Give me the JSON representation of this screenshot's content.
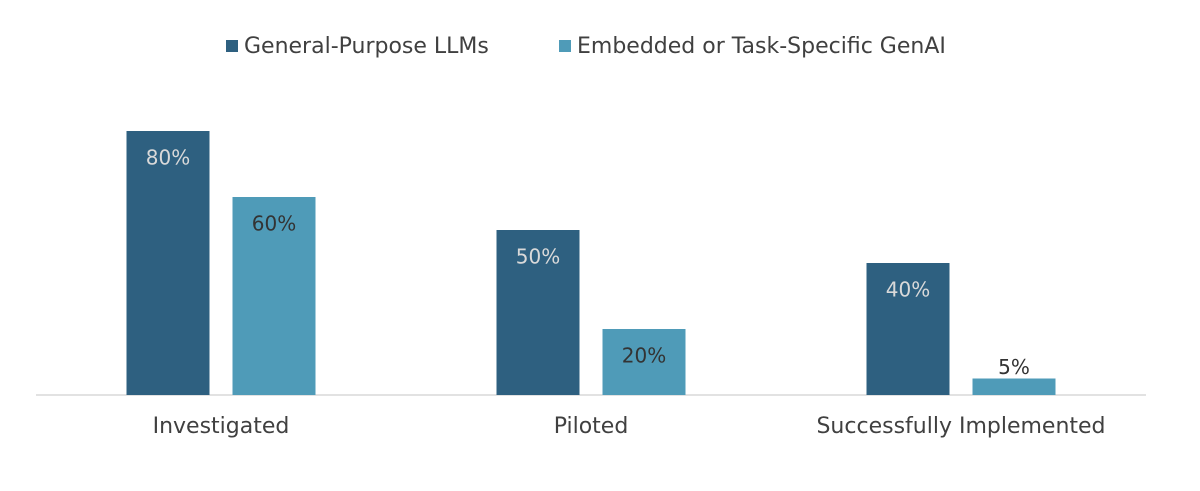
{
  "chart_data": {
    "type": "bar",
    "categories": [
      "Investigated",
      "Piloted",
      "Successfully Implemented"
    ],
    "series": [
      {
        "name": "General-Purpose LLMs",
        "color": "#2e6080",
        "values": [
          80,
          50,
          40
        ],
        "value_labels": [
          "80%",
          "50%",
          "40%"
        ]
      },
      {
        "name": "Embedded or Task-Specific GenAI",
        "color": "#4f9bb8",
        "values": [
          60,
          20,
          5
        ],
        "value_labels": [
          "60%",
          "20%",
          "5%"
        ]
      }
    ],
    "ylim": [
      0,
      80
    ],
    "legend": "top"
  }
}
